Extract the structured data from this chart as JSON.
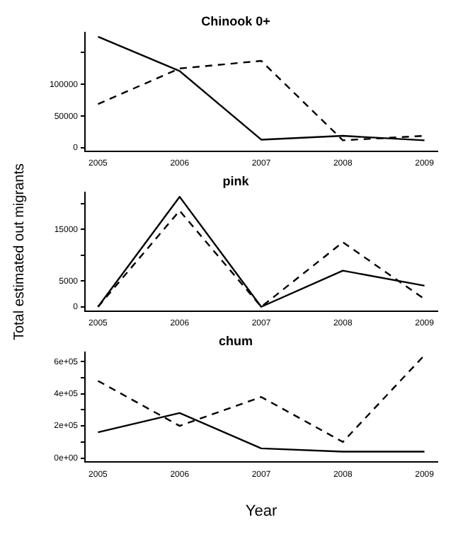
{
  "chart_data": [
    {
      "type": "line",
      "title": "Chinook 0+",
      "x": [
        2005,
        2006,
        2007,
        2008,
        2009
      ],
      "xlim": [
        2004.84,
        2009.16
      ],
      "xticks": [
        2005,
        2006,
        2007,
        2008,
        2009
      ],
      "ylim": [
        -5000,
        182000
      ],
      "yticks": [
        0,
        50000,
        100000,
        {
          "value": 150000,
          "label": null
        }
      ],
      "grid": false,
      "legend": false,
      "marker": "none",
      "series": [
        {
          "color": "#000000",
          "line_style": "solid",
          "values": [
            175000,
            121000,
            13000,
            19000,
            12000
          ]
        },
        {
          "color": "#000000",
          "line_style": "dashed",
          "values": [
            69000,
            125000,
            137000,
            12000,
            19000
          ]
        }
      ]
    },
    {
      "type": "line",
      "title": "pink",
      "ylabel": "Total estimated out migrants",
      "x": [
        2005,
        2006,
        2007,
        2008,
        2009
      ],
      "xlim": [
        2004.84,
        2009.16
      ],
      "xticks": [
        2005,
        2006,
        2007,
        2008,
        2009
      ],
      "ylim": [
        -800,
        22200
      ],
      "yticks": [
        0,
        5000,
        {
          "value": 10000,
          "label": null
        },
        15000,
        {
          "value": 20000,
          "label": null
        }
      ],
      "grid": false,
      "legend": false,
      "marker": "none",
      "series": [
        {
          "color": "#000000",
          "line_style": "solid",
          "values": [
            0,
            21300,
            0,
            7000,
            4100
          ]
        },
        {
          "color": "#000000",
          "line_style": "dashed",
          "values": [
            0,
            18600,
            0,
            12500,
            1500
          ]
        }
      ]
    },
    {
      "type": "line",
      "title": "chum",
      "xlabel": "Year",
      "x": [
        2005,
        2006,
        2007,
        2008,
        2009
      ],
      "xlim": [
        2004.84,
        2009.16
      ],
      "xticks": [
        2005,
        2006,
        2007,
        2008,
        2009
      ],
      "ylim": [
        -25000,
        660000
      ],
      "yticks": [
        {
          "value": 0,
          "label": "0e+00"
        },
        {
          "value": 100000,
          "label": null
        },
        {
          "value": 200000,
          "label": "2e+05"
        },
        {
          "value": 300000,
          "label": null
        },
        {
          "value": 400000,
          "label": "4e+05"
        },
        {
          "value": 500000,
          "label": null
        },
        {
          "value": 600000,
          "label": "6e+05"
        }
      ],
      "grid": false,
      "legend": false,
      "marker": "none",
      "series": [
        {
          "color": "#000000",
          "line_style": "solid",
          "values": [
            160000,
            280000,
            60000,
            40000,
            40000
          ]
        },
        {
          "color": "#000000",
          "line_style": "dashed",
          "values": [
            480000,
            200000,
            380000,
            100000,
            640000
          ]
        }
      ]
    }
  ]
}
